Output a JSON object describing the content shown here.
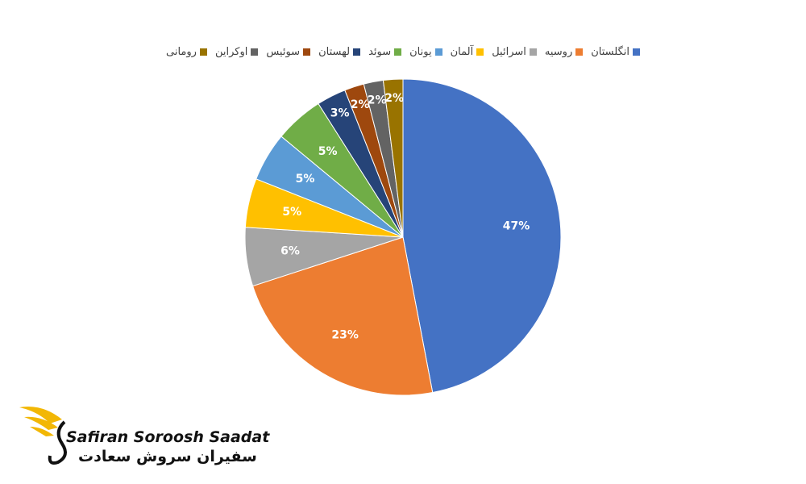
{
  "chart_data": {
    "type": "pie",
    "categories": [
      "انگلستان",
      "روسیه",
      "اسرائیل",
      "آلمان",
      "یونان",
      "سوئد",
      "لهستان",
      "سوئیس",
      "اوکراین",
      "رومانی"
    ],
    "values": [
      47,
      23,
      6,
      5,
      5,
      5,
      3,
      2,
      2,
      2
    ],
    "value_labels": [
      "47%",
      "23%",
      "6%",
      "5%",
      "5%",
      "5%",
      "3%",
      "2%",
      "2%",
      "2%"
    ],
    "colors": [
      "#4472c4",
      "#ed7d31",
      "#a5a5a5",
      "#ffc000",
      "#5b9bd5",
      "#70ad47",
      "#264478",
      "#9e480e",
      "#636363",
      "#997300"
    ],
    "legend": "top"
  },
  "logo": {
    "name": "Safiran Soroosh Saadat",
    "name_fa": "سفیران سروش سعادت"
  }
}
